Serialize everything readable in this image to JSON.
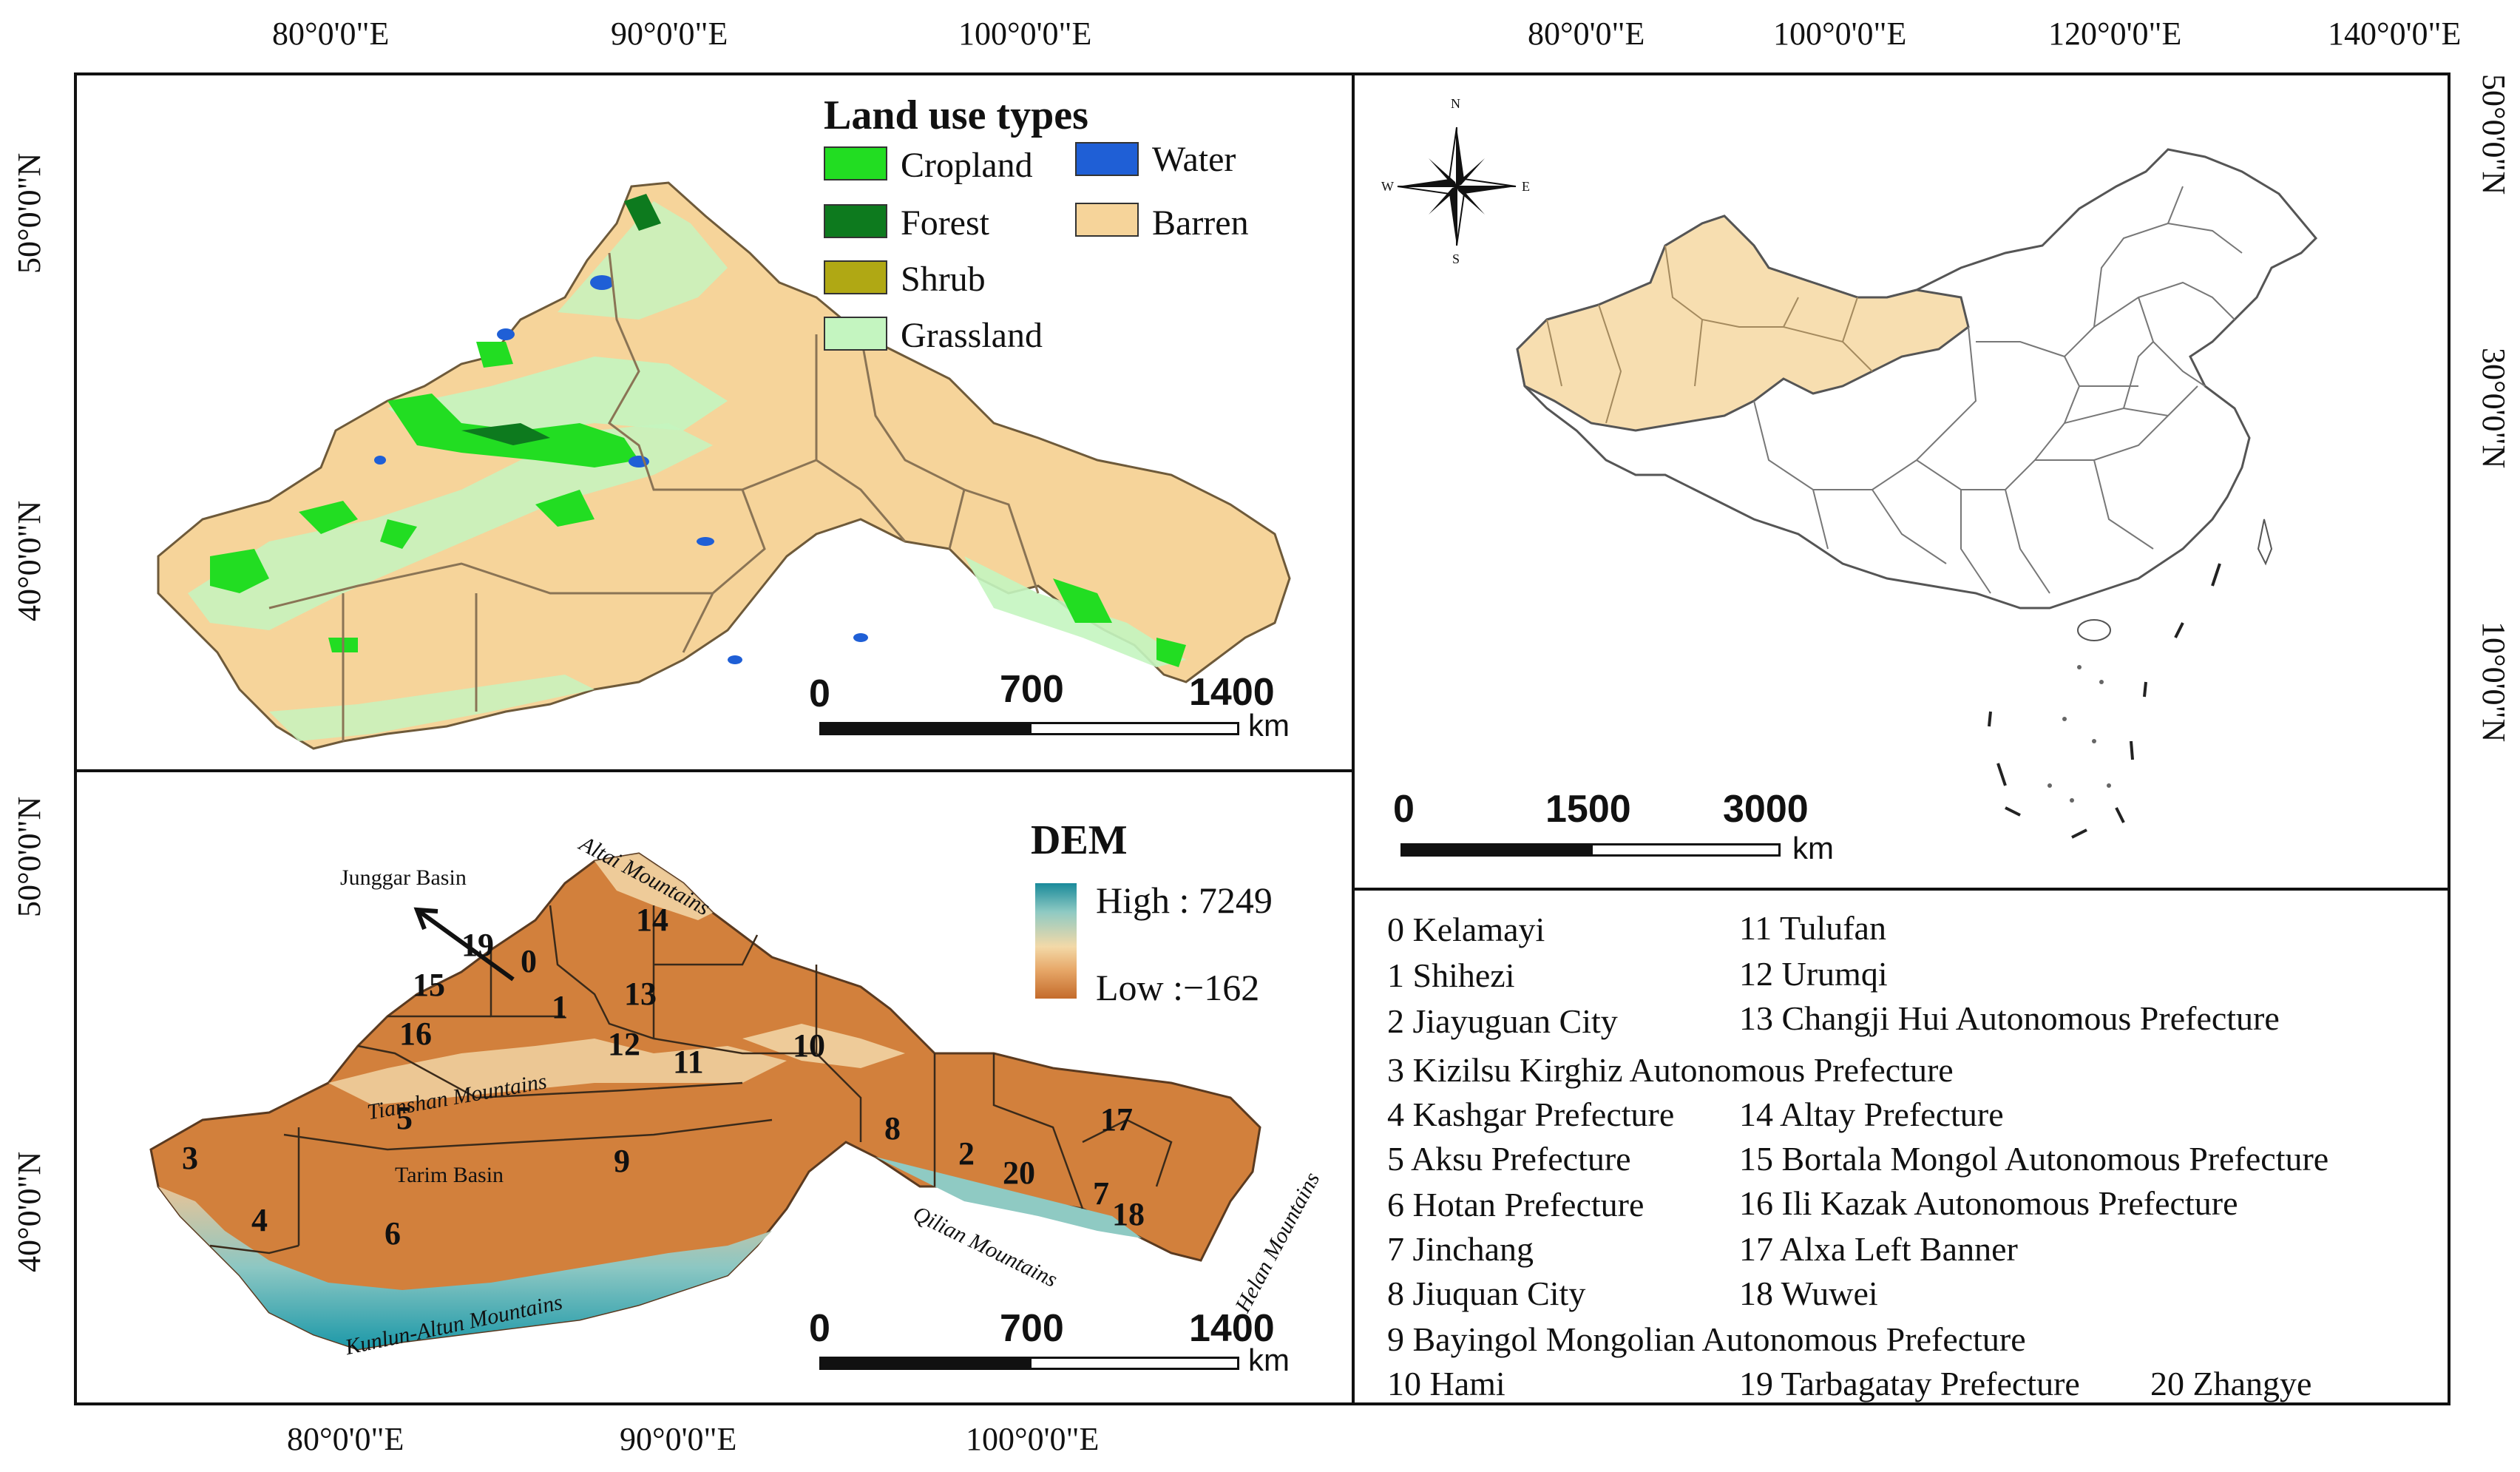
{
  "top_axis": {
    "left_panel_ticks": [
      "80°0'0\"E",
      "90°0'0\"E",
      "100°0'0\"E"
    ],
    "right_panel_ticks": [
      "80°0'0\"E",
      "100°0'0\"E",
      "120°0'0\"E",
      "140°0'0\"E"
    ]
  },
  "bottom_axis": {
    "ticks": [
      "80°0'0\"E",
      "90°0'0\"E",
      "100°0'0\"E"
    ]
  },
  "left_axis": {
    "top_panel_ticks": [
      "50°0'0\"N",
      "40°0'0\"N"
    ],
    "bottom_panel_ticks": [
      "50°0'0\"N",
      "40°0'0\"N"
    ]
  },
  "right_axis": {
    "ticks": [
      "50°0'0\"N",
      "30°0'0\"N",
      "10°0'0\"N"
    ]
  },
  "land_use_legend": {
    "title": "Land use types",
    "items": [
      {
        "label": "Cropland",
        "color": "#22dd22"
      },
      {
        "label": "Water",
        "color": "#1f5fd6"
      },
      {
        "label": "Forest",
        "color": "#0d7a1e"
      },
      {
        "label": "Barren",
        "color": "#f6d49a"
      },
      {
        "label": "Shrub",
        "color": "#b0a814"
      },
      {
        "label": "Grassland",
        "color": "#c4f5c0"
      }
    ]
  },
  "land_use_scale": {
    "labels": [
      "0",
      "700",
      "1400"
    ],
    "unit": "km"
  },
  "dem_legend": {
    "title": "DEM",
    "high": "High : 7249",
    "low": "Low :−162",
    "color_high": "#1a8a9a",
    "color_mid": "#f3d9a8",
    "color_low": "#c46b2b"
  },
  "dem_scale": {
    "labels": [
      "0",
      "700",
      "1400"
    ],
    "unit": "km"
  },
  "china_scale": {
    "labels": [
      "0",
      "1500",
      "3000"
    ],
    "unit": "km"
  },
  "compass": {
    "n": "N",
    "s": "S",
    "e": "E",
    "w": "W"
  },
  "dem_map_labels": {
    "junggar": "Junggar Basin",
    "altai": "Altai Mountains",
    "tianshan": "Tianshan Mountains",
    "tarim": "Tarim Basin",
    "kunlun": "Kunlun-Altun Mountains",
    "qilian": "Qilian Mountains",
    "helan": "Helan Mountains"
  },
  "dem_numbers": [
    "0",
    "1",
    "2",
    "3",
    "4",
    "5",
    "6",
    "7",
    "8",
    "9",
    "10",
    "11",
    "12",
    "13",
    "14",
    "15",
    "16",
    "17",
    "18",
    "19",
    "20"
  ],
  "region_list": [
    "0 Kelamayi",
    "1 Shihezi",
    "2 Jiayuguan City",
    "3 Kizilsu Kirghiz Autonomous Prefecture",
    "4 Kashgar Prefecture",
    "5 Aksu Prefecture",
    "6 Hotan Prefecture",
    "7 Jinchang",
    "8 Jiuquan City",
    "9 Bayingol Mongolian Autonomous Prefecture",
    "10 Hami",
    "11 Tulufan",
    "12 Urumqi",
    "13 Changji Hui Autonomous Prefecture",
    "14 Altay Prefecture",
    "15 Bortala Mongol Autonomous Prefecture",
    "16 Ili Kazak Autonomous Prefecture",
    "17 Alxa Left Banner",
    "18 Wuwei",
    "19 Tarbagatay Prefecture",
    "20 Zhangye"
  ],
  "colors": {
    "barren": "#f6d49a",
    "border": "#111111",
    "china_fill": "#ffffff",
    "study_fill": "#f7deb0"
  }
}
